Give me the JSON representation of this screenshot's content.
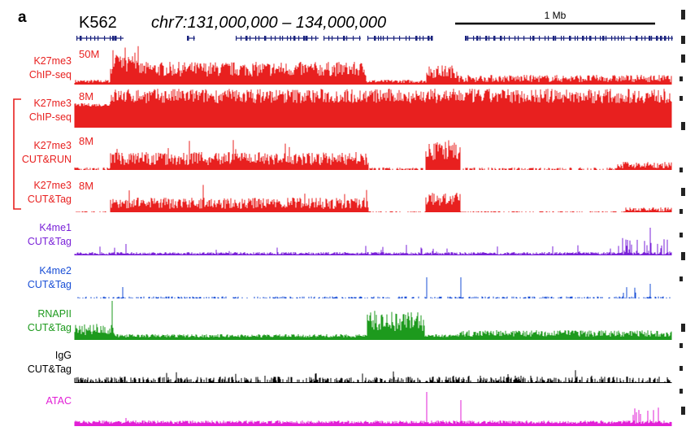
{
  "figure": {
    "panel_label": "a",
    "cell_line": "K562",
    "region": "chr7:131,000,000 – 134,000,000",
    "scale_bar_label": "1 Mb"
  },
  "tracks": [
    {
      "id": "k27me3-chipseq-1",
      "name_line1": "K27me3",
      "name_line2": "ChIP-seq",
      "scale": "50M",
      "color": "#e8201f"
    },
    {
      "id": "k27me3-chipseq-2",
      "name_line1": "K27me3",
      "name_line2": "ChIP-seq",
      "scale": "8M",
      "color": "#e8201f"
    },
    {
      "id": "k27me3-cutrun",
      "name_line1": "K27me3",
      "name_line2": "CUT&RUN",
      "scale": "8M",
      "color": "#e8201f"
    },
    {
      "id": "k27me3-cuttag",
      "name_line1": "K27me3",
      "name_line2": "CUT&Tag",
      "scale": "8M",
      "color": "#e8201f"
    },
    {
      "id": "k4me1-cuttag",
      "name_line1": "K4me1",
      "name_line2": "CUT&Tag",
      "scale": "",
      "color": "#7a22d8"
    },
    {
      "id": "k4me2-cuttag",
      "name_line1": "K4me2",
      "name_line2": "CUT&Tag",
      "scale": "",
      "color": "#1a4fd6"
    },
    {
      "id": "rnapii-cuttag",
      "name_line1": "RNAPII",
      "name_line2": "CUT&Tag",
      "scale": "",
      "color": "#1d9a1d"
    },
    {
      "id": "igg-cuttag",
      "name_line1": "IgG",
      "name_line2": "CUT&Tag",
      "scale": "",
      "color": "#000000"
    },
    {
      "id": "atac",
      "name_line1": "ATAC",
      "name_line2": "",
      "scale": "",
      "color": "#e21fd6"
    }
  ],
  "gene_track_color": "#1a237e"
}
